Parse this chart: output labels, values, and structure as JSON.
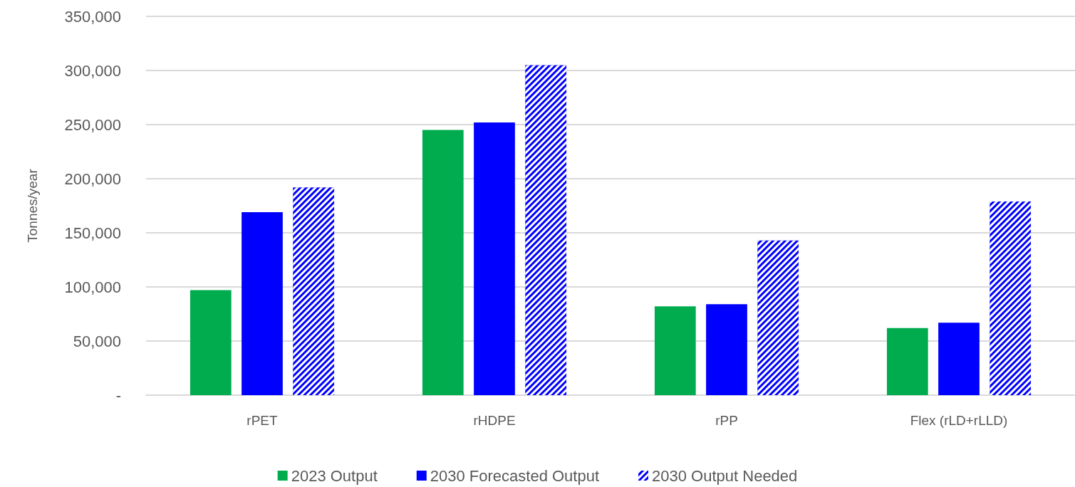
{
  "chart_data": {
    "type": "bar",
    "ylabel": "Tonnes/year",
    "categories": [
      "rPET",
      "rHDPE",
      "rPP",
      "Flex (rLD+rLLD)"
    ],
    "series": [
      {
        "name": "2023 Output",
        "color": "#00ac4e",
        "values": [
          97000,
          245000,
          82000,
          62000
        ]
      },
      {
        "name": "2030 Forecasted Output",
        "color": "#0000ff",
        "values": [
          169000,
          252000,
          84000,
          67000
        ]
      },
      {
        "name": "2030 Output Needed",
        "color": "#0000ff",
        "values": [
          192000,
          305000,
          143000,
          179000
        ]
      }
    ],
    "ylim": [
      0,
      350000
    ],
    "yticks": [
      {
        "value": 0,
        "label": "-"
      },
      {
        "value": 50000,
        "label": "50,000"
      },
      {
        "value": 100000,
        "label": "100,000"
      },
      {
        "value": 150000,
        "label": "150,000"
      },
      {
        "value": 200000,
        "label": "200,000"
      },
      {
        "value": 250000,
        "label": "250,000"
      },
      {
        "value": 300000,
        "label": "300,000"
      },
      {
        "value": 350000,
        "label": "350,000"
      }
    ],
    "grid": "y",
    "legend": "bottom"
  }
}
